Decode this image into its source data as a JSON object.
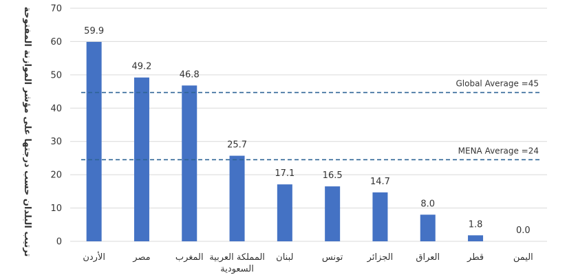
{
  "chart_data": {
    "type": "bar",
    "title": "",
    "xlabel": "",
    "ylabel": "ترتيب البلدان حسب درجتها على مؤشر الموازنة المفتوحة",
    "ylim": [
      0,
      70
    ],
    "yticks": [
      0,
      10,
      20,
      30,
      40,
      50,
      60,
      70
    ],
    "grid": true,
    "categories": [
      [
        "الأردن"
      ],
      [
        "مصر"
      ],
      [
        "المغرب"
      ],
      [
        "المملكة العربية",
        "السعودية"
      ],
      [
        "لبنان"
      ],
      [
        "تونس"
      ],
      [
        "الجزائر"
      ],
      [
        "العراق"
      ],
      [
        "قطر"
      ],
      [
        "اليمن"
      ]
    ],
    "values": [
      59.9,
      49.2,
      46.8,
      25.7,
      17.1,
      16.5,
      14.7,
      8.0,
      1.8,
      0.0
    ],
    "value_labels": [
      "59.9",
      "49.2",
      "46.8",
      "25.7",
      "17.1",
      "16.5",
      "14.7",
      "8.0",
      "1.8",
      "0.0"
    ],
    "bar_color": "#4472C4",
    "reference_lines": [
      {
        "label": "Global Average =45",
        "value": 44.7,
        "color": "#2E6496"
      },
      {
        "label": "MENA Average =24",
        "value": 24.5,
        "color": "#2E6496"
      }
    ]
  }
}
